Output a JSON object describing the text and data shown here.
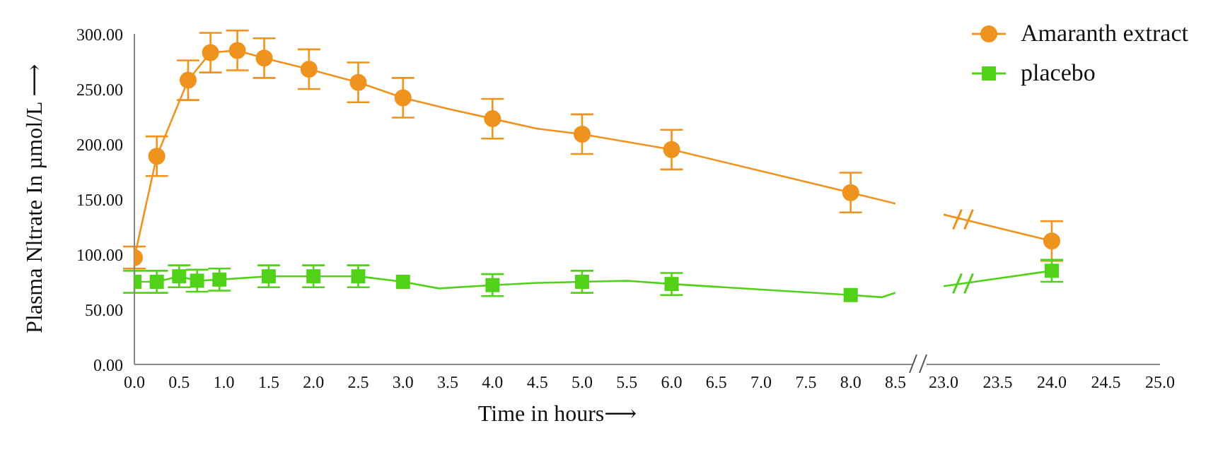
{
  "chart_data": [
    {
      "type": "line",
      "xlabel": "Time in hours⟶",
      "ylabel": "Plasma Nltrate In µmol/L ⟶",
      "grid": false,
      "xlim": [
        0,
        8.5
      ],
      "xticks": [
        {
          "value": 0,
          "label": "0.0"
        },
        0.5,
        {
          "value": 1,
          "label": "1.0"
        },
        1.5,
        {
          "value": 2,
          "label": "2.0"
        },
        2.5,
        {
          "value": 3,
          "label": "3.0"
        },
        3.5,
        {
          "value": 4,
          "label": "4.0"
        },
        4.5,
        {
          "value": 5,
          "label": "5.0"
        },
        5.5,
        {
          "value": 6,
          "label": "6.0"
        },
        6.5,
        {
          "value": 7,
          "label": "7.0"
        },
        7.5,
        {
          "value": 8,
          "label": "8.0"
        },
        8.5
      ],
      "ylim": [
        0,
        300
      ],
      "yticks": [
        {
          "value": 0,
          "label": "0.00"
        },
        {
          "value": 50,
          "label": "50.00"
        },
        {
          "value": 100,
          "label": "100.00"
        },
        {
          "value": 150,
          "label": "150.00"
        },
        {
          "value": 200,
          "label": "200.00"
        },
        {
          "value": 250,
          "label": "250.00"
        },
        {
          "value": 300,
          "label": "300.00"
        }
      ],
      "series": [
        {
          "type": "scatter",
          "color": "#f0921e",
          "marker": "circle",
          "x": [
            0,
            0.25,
            0.6,
            0.85,
            1.15,
            1.45,
            1.95,
            2.5,
            3,
            4,
            5,
            6,
            8
          ],
          "values": [
            97,
            189,
            258,
            283,
            285,
            278,
            268,
            256,
            242,
            223,
            209,
            195,
            156
          ],
          "errors": [
            10,
            18,
            18,
            18,
            18,
            18,
            18,
            18,
            18,
            18,
            18,
            18,
            18
          ]
        },
        {
          "type": "line",
          "color": "#f0921e",
          "marker": "none",
          "x": [
            0,
            0.25,
            0.6,
            0.85,
            1.15,
            1.45,
            1.95,
            2.5,
            3,
            3.5,
            4,
            4.5,
            5,
            6,
            8,
            8.5
          ],
          "values": [
            97,
            189,
            258,
            283,
            285,
            278,
            268,
            256,
            242,
            232,
            223,
            214,
            209,
            195,
            156,
            146
          ]
        },
        {
          "type": "scatter",
          "color": "#52d119",
          "marker": "square",
          "x": [
            0,
            0.25,
            0.5,
            0.7,
            0.95,
            1.5,
            2,
            2.5,
            3,
            4,
            5,
            6,
            8
          ],
          "values": [
            75,
            75,
            80,
            76,
            77,
            80,
            80,
            80,
            75,
            72,
            75,
            73,
            63
          ],
          "errors": [
            10,
            10,
            10,
            10,
            10,
            10,
            10,
            10,
            null,
            10,
            10,
            10,
            null
          ]
        },
        {
          "type": "line",
          "color": "#52d119",
          "marker": "none",
          "x": [
            0,
            0.25,
            0.5,
            0.7,
            0.95,
            1.5,
            2,
            2.5,
            3,
            3.4,
            4,
            4.5,
            5,
            5.5,
            6,
            8,
            8.35,
            8.5
          ],
          "values": [
            75,
            75,
            80,
            76,
            77,
            80,
            80,
            80,
            75,
            69,
            72,
            74,
            75,
            76,
            73,
            63,
            61,
            65
          ]
        }
      ]
    },
    {
      "type": "line",
      "legend": "top right",
      "grid": false,
      "tick_labels": "x",
      "xlim": [
        23,
        25
      ],
      "xticks": [
        {
          "value": 23,
          "label": "23.0"
        },
        23.5,
        {
          "value": 24,
          "label": "24.0"
        },
        24.5,
        {
          "value": 25,
          "label": "25.0"
        }
      ],
      "ylim": [
        0,
        300
      ],
      "series": [
        {
          "type": "scatter",
          "name": "Amaranth extract",
          "color": "#f0921e",
          "marker": "circle",
          "x": [
            24
          ],
          "values": [
            112
          ],
          "errors": [
            18
          ]
        },
        {
          "type": "line",
          "color": "#f0921e",
          "marker": "none",
          "x": [
            23,
            24
          ],
          "values": [
            136,
            112
          ]
        },
        {
          "type": "scatter",
          "name": "placebo",
          "color": "#52d119",
          "marker": "square",
          "x": [
            24
          ],
          "values": [
            85
          ],
          "errors": [
            10
          ]
        },
        {
          "type": "line",
          "color": "#52d119",
          "marker": "none",
          "x": [
            23,
            24
          ],
          "values": [
            71,
            85
          ]
        }
      ]
    }
  ]
}
